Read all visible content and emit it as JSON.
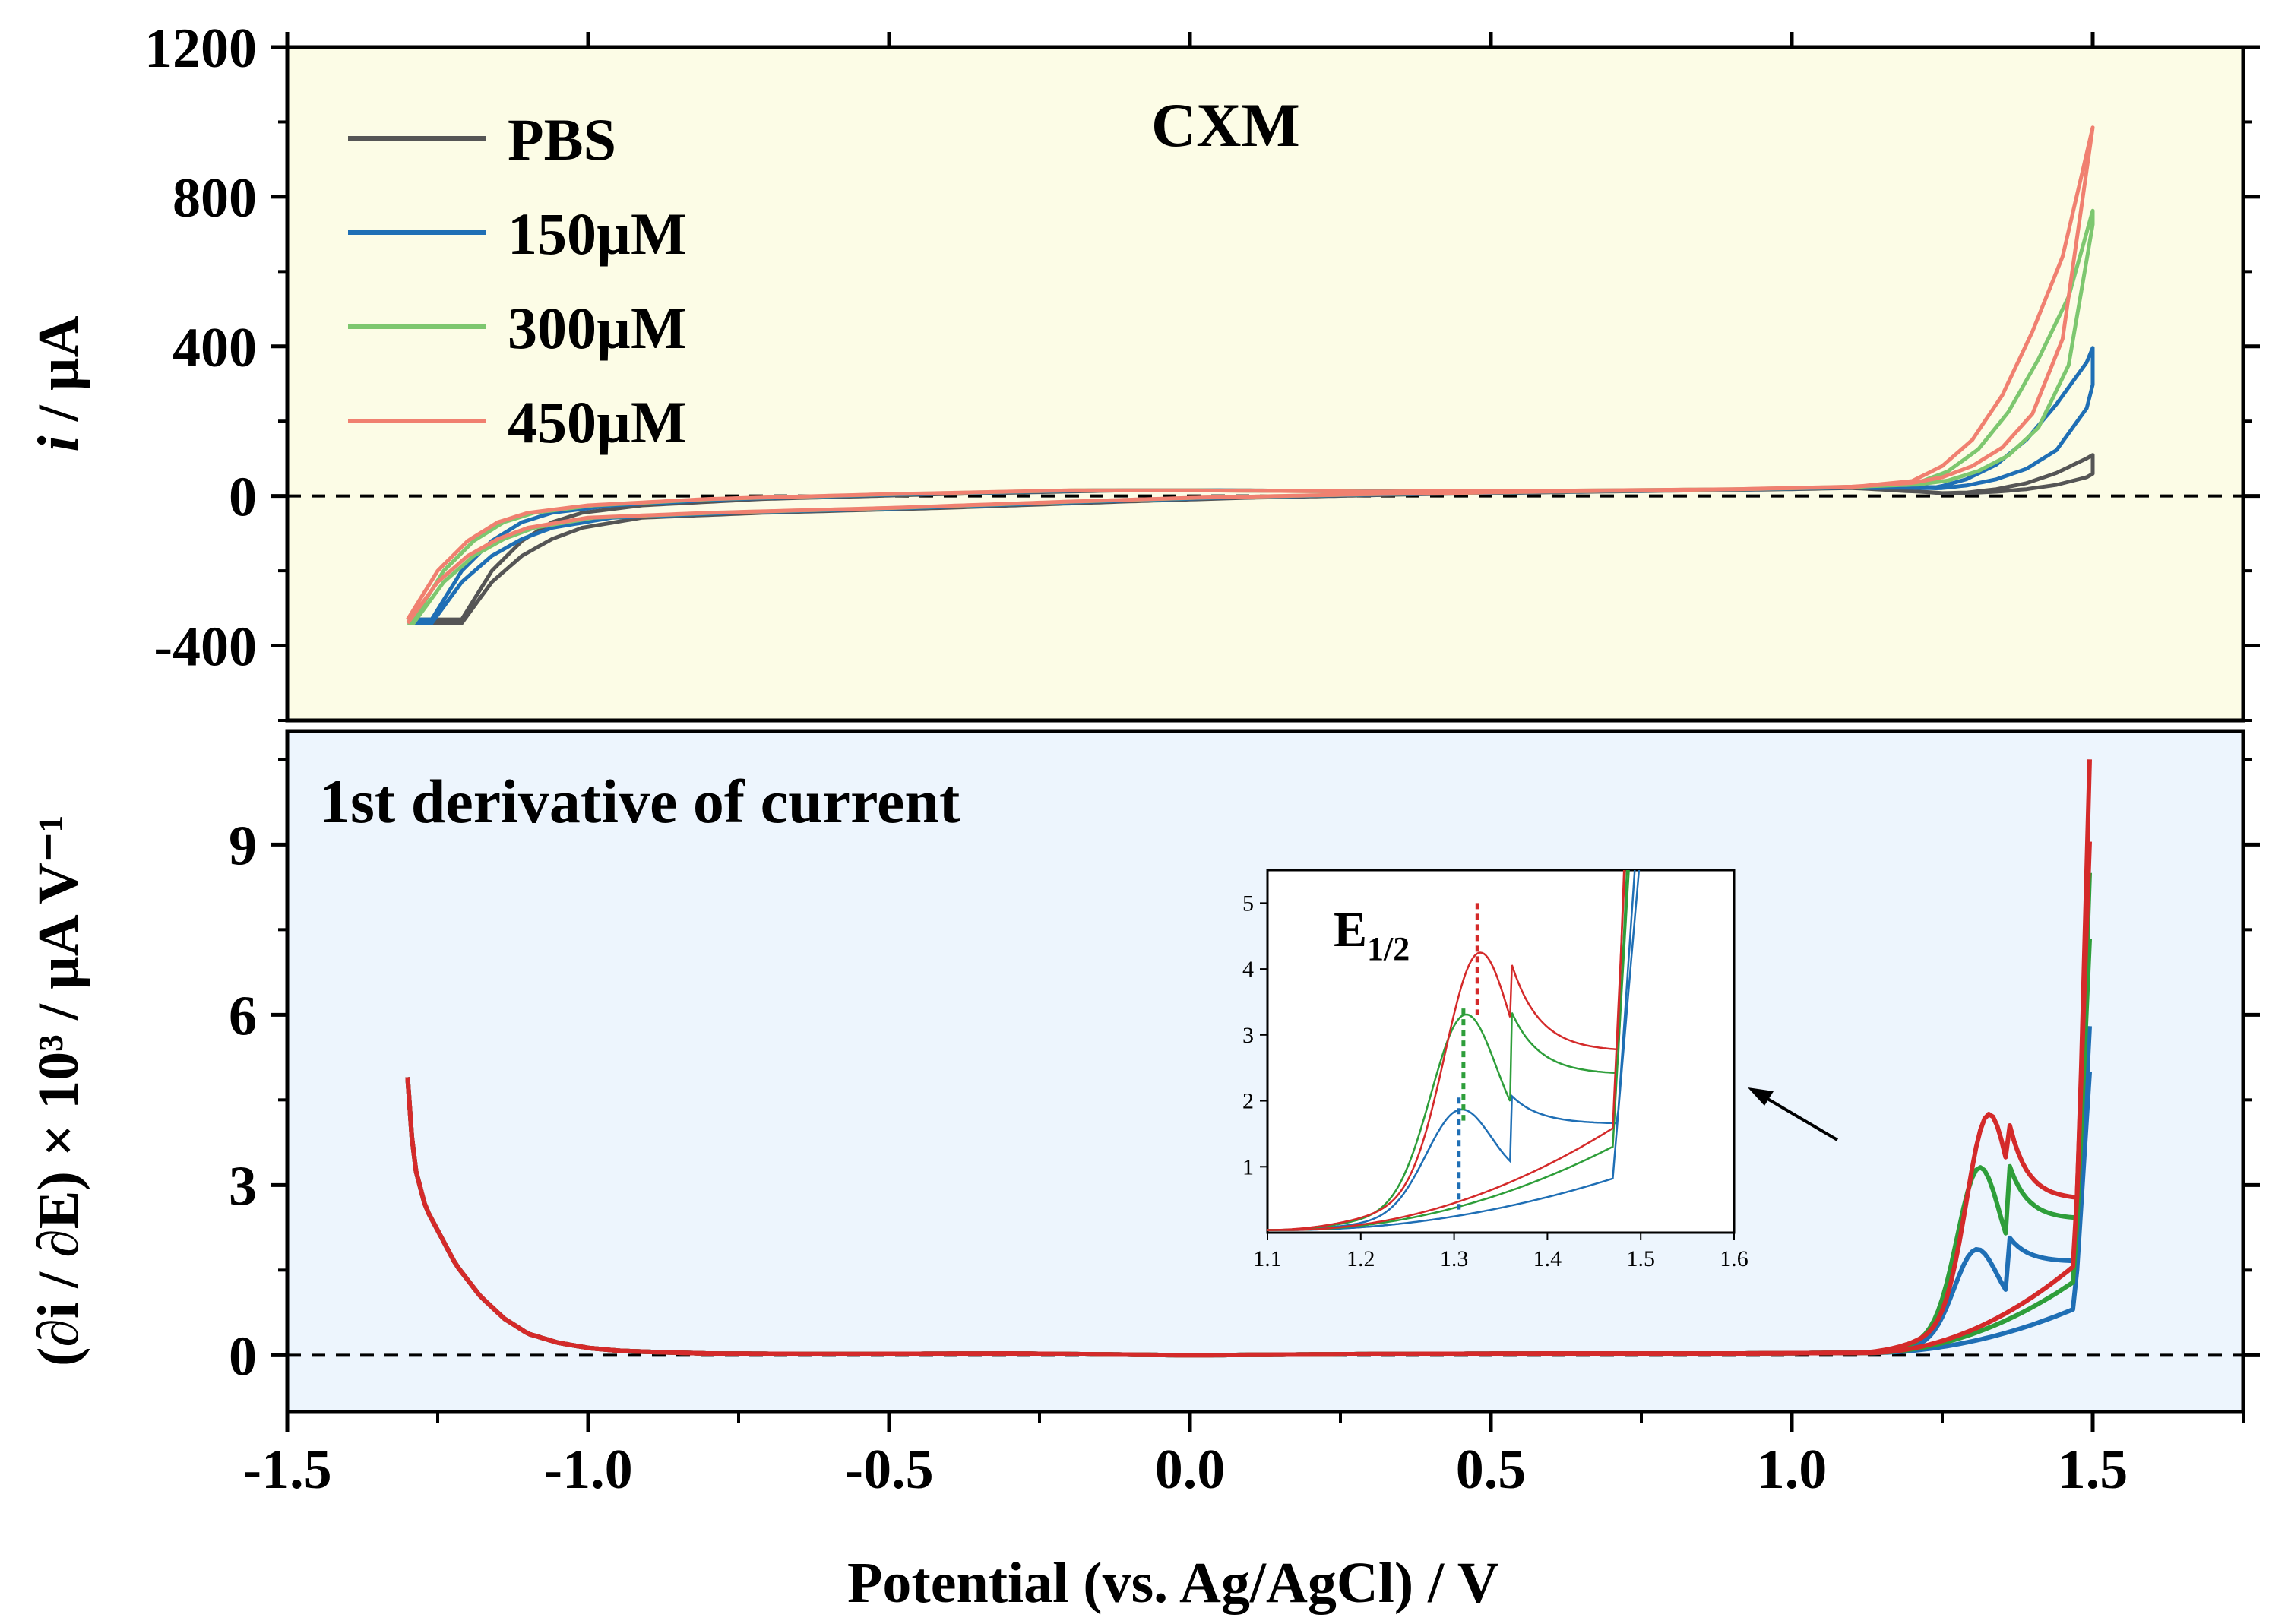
{
  "chart_data": [
    {
      "type": "line",
      "panel": "top",
      "title": "CXM",
      "xlabel": "Potential (vs. Ag/AgCl)  / V",
      "ylabel_italic": "i",
      "ylabel_rest": " / µA",
      "xlim": [
        -1.5,
        1.75
      ],
      "ylim": [
        -600,
        1200
      ],
      "xticks": [
        "-1.5",
        "-1.0",
        "-0.5",
        "0.0",
        "0.5",
        "1.0",
        "1.5"
      ],
      "yticks": [
        "1200",
        "800",
        "400",
        "0",
        "-400"
      ],
      "ytick_values": [
        1200,
        800,
        400,
        0,
        -400
      ],
      "zero_line": "dashed",
      "background": "#fcfce6",
      "legend_position": "top-left",
      "series": [
        {
          "name": "PBS",
          "color": "#555555",
          "peak": 225,
          "shift": 0.09
        },
        {
          "name": "150µM",
          "color": "#1f6fb5",
          "peak": 550,
          "shift": 0.04
        },
        {
          "name": "300µM",
          "color": "#7dc76f",
          "peak": 820,
          "shift": 0.01
        },
        {
          "name": "450µM",
          "color": "#f08070",
          "peak": 985,
          "shift": 0.0
        }
      ],
      "x": [
        -1.3,
        -1.25,
        -1.2,
        -1.15,
        -1.1,
        -1.0,
        -0.8,
        -0.5,
        -0.2,
        0.0,
        0.3,
        0.6,
        0.9,
        1.1,
        1.2,
        1.25,
        1.3,
        1.35,
        1.4,
        1.45,
        1.5
      ],
      "forward_y": [
        -340,
        -230,
        -160,
        -115,
        -85,
        -58,
        -45,
        -32,
        -15,
        -5,
        5,
        12,
        18,
        24,
        40,
        80,
        150,
        270,
        440,
        640,
        985
      ],
      "reverse_y": [
        -330,
        -200,
        -120,
        -70,
        -45,
        -25,
        -8,
        5,
        15,
        15,
        12,
        14,
        18,
        25,
        35,
        50,
        80,
        130,
        220,
        420,
        985
      ]
    },
    {
      "type": "line",
      "panel": "bottom",
      "title": "1st derivative of current",
      "ylabel": "(∂i / ∂E) × 10³ / µA V⁻¹",
      "xlim": [
        -1.5,
        1.75
      ],
      "ylim": [
        -1,
        11
      ],
      "yticks": [
        "9",
        "6",
        "3",
        "0"
      ],
      "ytick_values": [
        9,
        6,
        3,
        0
      ],
      "zero_line": "dashed",
      "background": "#edf5fd",
      "series": [
        {
          "name": "150µM",
          "color": "#1f6fb5",
          "peak_x": 1.305,
          "peak_y": 2.1,
          "valley_y": 1.65,
          "spike": 5.8
        },
        {
          "name": "300µM",
          "color": "#2e9e3a",
          "peak_x": 1.31,
          "peak_y": 3.4,
          "valley_y": 2.4,
          "spike": 8.5
        },
        {
          "name": "450µM",
          "color": "#d42a2a",
          "peak_x": 1.325,
          "peak_y": 4.15,
          "valley_y": 2.75,
          "spike": 10.5
        }
      ],
      "low_x": [
        -1.3,
        -1.29,
        -1.27,
        -1.25,
        -1.22,
        -1.18,
        -1.14,
        -1.1,
        -1.05,
        -1.0,
        -0.95,
        -0.9,
        -0.8,
        -0.6,
        -0.3,
        0.0,
        0.3,
        0.6,
        0.9,
        1.05
      ],
      "low_y": [
        4.9,
        3.4,
        2.6,
        2.2,
        1.6,
        1.05,
        0.65,
        0.38,
        0.22,
        0.13,
        0.08,
        0.06,
        0.03,
        0.02,
        0.03,
        0.0,
        0.02,
        0.03,
        0.03,
        0.04
      ]
    },
    {
      "type": "line",
      "panel": "inset",
      "annotation_main": "E",
      "annotation_sub": "1/2",
      "xlim": [
        1.1,
        1.6
      ],
      "ylim": [
        0,
        5.5
      ],
      "xticks": [
        "1.1",
        "1.2",
        "1.3",
        "1.4",
        "1.5",
        "1.6"
      ],
      "xtick_values": [
        1.1,
        1.2,
        1.3,
        1.4,
        1.5,
        1.6
      ],
      "yticks": [
        "1",
        "2",
        "3",
        "4",
        "5"
      ],
      "ytick_values": [
        1,
        2,
        3,
        4,
        5
      ],
      "e_half": [
        {
          "color": "#1f6fb5",
          "x": 1.305,
          "y_top": 2.05
        },
        {
          "color": "#2e9e3a",
          "x": 1.31,
          "y_top": 3.4
        },
        {
          "color": "#d42a2a",
          "x": 1.325,
          "y_top": 5.0
        }
      ]
    }
  ]
}
